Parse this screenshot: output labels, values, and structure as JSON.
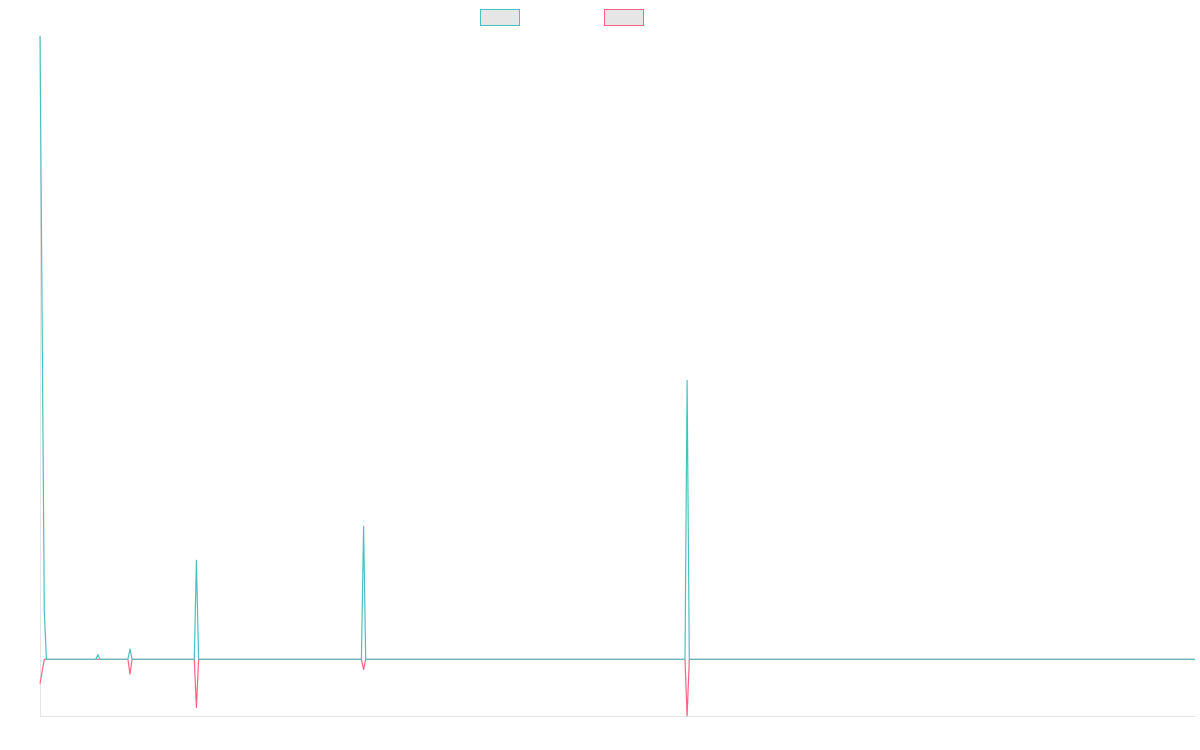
{
  "chart_data": {
    "type": "line",
    "x": [
      0,
      1,
      2,
      3,
      4,
      5,
      6,
      7,
      8,
      9,
      10,
      11,
      12,
      13,
      14,
      15,
      16,
      17,
      18,
      19,
      20,
      21,
      22,
      23,
      24,
      25,
      26,
      27,
      28,
      29,
      30,
      31,
      32,
      33,
      34,
      35,
      36,
      37,
      38,
      39,
      40,
      41,
      42,
      43,
      44,
      45,
      46,
      47,
      48,
      49,
      50,
      51,
      52,
      53,
      54,
      55,
      56,
      57,
      58,
      59,
      60,
      61,
      62,
      63,
      64,
      65,
      66,
      67,
      68,
      69,
      70,
      71,
      72,
      73,
      74,
      75,
      76,
      77,
      78,
      79,
      80,
      81,
      82,
      83,
      84,
      85,
      86,
      87,
      88,
      89,
      90,
      91,
      92,
      93,
      94,
      95,
      96,
      97,
      98,
      99,
      100,
      101,
      102,
      103,
      104,
      105,
      106,
      107,
      108,
      109,
      110,
      111,
      112,
      113,
      114,
      115,
      116,
      117,
      118,
      119,
      120,
      121,
      122,
      123,
      124,
      125,
      126,
      127,
      128,
      129,
      130,
      131,
      132,
      133,
      134,
      135,
      136,
      137,
      138,
      139,
      140,
      141,
      142,
      143,
      144,
      145,
      146,
      147,
      148,
      149,
      150,
      151,
      152,
      153,
      154,
      155,
      156,
      157,
      158,
      159,
      160,
      161,
      162,
      163,
      164,
      165,
      166,
      167,
      168,
      169,
      170,
      171,
      172,
      173,
      174,
      175,
      176,
      177,
      178,
      179,
      180,
      181,
      182,
      183,
      184,
      185,
      186,
      187,
      188,
      189,
      190,
      191,
      192,
      193,
      194,
      195,
      196,
      197,
      198,
      199,
      200,
      201,
      202,
      203,
      204,
      205,
      206,
      207,
      208,
      209,
      210,
      211,
      212,
      213,
      214,
      215,
      216,
      217,
      218,
      219,
      220,
      221,
      222,
      223,
      224,
      225,
      226,
      227,
      228,
      229,
      230,
      231,
      232,
      233,
      234,
      235,
      236,
      237,
      238,
      239,
      240,
      241,
      242,
      243,
      244,
      245,
      246,
      247,
      248,
      249,
      250,
      251,
      252,
      253,
      254,
      255,
      256,
      257,
      258,
      259,
      260,
      261,
      262,
      263,
      264,
      265,
      266,
      267,
      268,
      269,
      270,
      271,
      272,
      273,
      274,
      275,
      276,
      277,
      278,
      279,
      280,
      281,
      282,
      283,
      284,
      285,
      286,
      287,
      288,
      289,
      290,
      291,
      292,
      293,
      294,
      295,
      296,
      297,
      298,
      299,
      300,
      301,
      302,
      303,
      304,
      305,
      306,
      307,
      308,
      309,
      310,
      311,
      312,
      313,
      314,
      315,
      316,
      317,
      318,
      319,
      320,
      321,
      322,
      323,
      324,
      325,
      326,
      327,
      328,
      329,
      330,
      331,
      332,
      333,
      334,
      335,
      336,
      337,
      338,
      339,
      340,
      341,
      342,
      343,
      344,
      345,
      346,
      347,
      348,
      349,
      350,
      351,
      352,
      353,
      354,
      355,
      356,
      357,
      358,
      359,
      360,
      361,
      362,
      363,
      364,
      365,
      366,
      367,
      368,
      369,
      370,
      371,
      372,
      373,
      374,
      375,
      376,
      377,
      378,
      379,
      380,
      381,
      382,
      383,
      384,
      385,
      386,
      387,
      388,
      389,
      390,
      391,
      392,
      393,
      394,
      395,
      396,
      397,
      398,
      399,
      400,
      401,
      402,
      403,
      404,
      405,
      406,
      407,
      408,
      409,
      410,
      411,
      412,
      413,
      414,
      415,
      416,
      417,
      418,
      419,
      420,
      421,
      422,
      423,
      424,
      425,
      426,
      427,
      428,
      429,
      430,
      431,
      432,
      433,
      434,
      435,
      436,
      437,
      438,
      439,
      440,
      441,
      442,
      443,
      444,
      445,
      446,
      447,
      448,
      449,
      450,
      451,
      452,
      453,
      454,
      455,
      456,
      457,
      458,
      459,
      460,
      461,
      462,
      463,
      464,
      465,
      466,
      467,
      468,
      469,
      470,
      471,
      472,
      473,
      474,
      475,
      476,
      477,
      478,
      479,
      480,
      481,
      482,
      483,
      484,
      485,
      486,
      487,
      488,
      489,
      490,
      491,
      492,
      493,
      494,
      495,
      496,
      497,
      498,
      499,
      500,
      501,
      502,
      503,
      504,
      505,
      506,
      507,
      508,
      509,
      510,
      511,
      512,
      513,
      514,
      515,
      516,
      517,
      518,
      519,
      520,
      521,
      522,
      523,
      524,
      525,
      526,
      527,
      528,
      529,
      530,
      531,
      532,
      533,
      534,
      535,
      536,
      537,
      538,
      539
    ],
    "series": [
      {
        "name": "",
        "color": "#4bc0c0",
        "points": [
          [
            0,
            110
          ],
          [
            2,
            8.5
          ],
          [
            3,
            0
          ],
          [
            26,
            0
          ],
          [
            27,
            0.8
          ],
          [
            28,
            0
          ],
          [
            41,
            0
          ],
          [
            42,
            1.8
          ],
          [
            43,
            0
          ],
          [
            72,
            0
          ],
          [
            73,
            17.5
          ],
          [
            74,
            0
          ],
          [
            150,
            0
          ],
          [
            151,
            23.5
          ],
          [
            152,
            0
          ],
          [
            301,
            0
          ],
          [
            302,
            49.2
          ],
          [
            303,
            0
          ],
          [
            539,
            0
          ]
        ]
      },
      {
        "name": "",
        "color": "#ff6384",
        "points": [
          [
            0,
            -4.3
          ],
          [
            2,
            0
          ],
          [
            41,
            0
          ],
          [
            42,
            -2.6
          ],
          [
            43,
            0
          ],
          [
            72,
            0
          ],
          [
            73,
            -8.5
          ],
          [
            74,
            0
          ],
          [
            150,
            0
          ],
          [
            151,
            -1.8
          ],
          [
            152,
            0
          ],
          [
            301,
            0
          ],
          [
            302,
            -10
          ],
          [
            303,
            0
          ],
          [
            539,
            0
          ]
        ]
      }
    ],
    "xlim": [
      0,
      539
    ],
    "ylim": [
      -10,
      110
    ],
    "title": "",
    "xlabel": "",
    "ylabel": "",
    "grid": false,
    "legend": "top-center"
  }
}
